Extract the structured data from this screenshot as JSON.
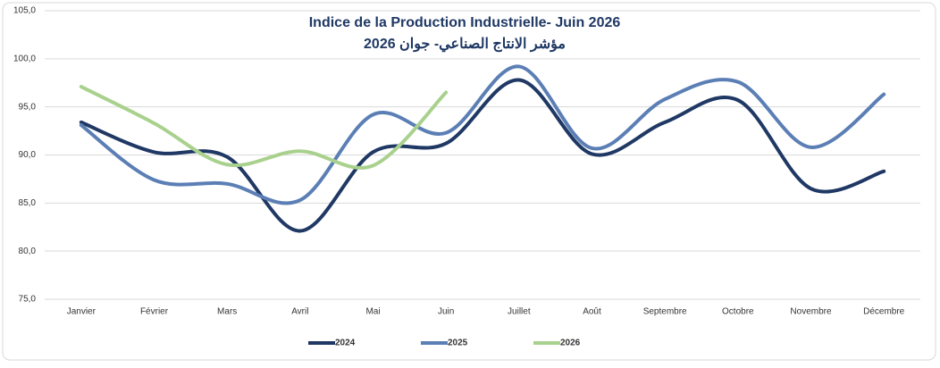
{
  "chart_data": {
    "type": "line",
    "title": "Indice de la Production Industrielle- Juin 2026",
    "subtitle": "مؤشر الانتاج الصناعي- جوان 2026",
    "categories": [
      "Janvier",
      "Février",
      "Mars",
      "Avril",
      "Mai",
      "Juin",
      "Juillet",
      "Août",
      "Septembre",
      "Octobre",
      "Novembre",
      "Décembre"
    ],
    "series": [
      {
        "name": "2024",
        "color": "#1f3864",
        "values": [
          93.4,
          90.3,
          89.8,
          82.1,
          90.3,
          91.2,
          97.8,
          90.1,
          93.4,
          95.7,
          86.5,
          88.3
        ]
      },
      {
        "name": "2025",
        "color": "#5b7fb5",
        "values": [
          93.1,
          87.4,
          87.0,
          85.3,
          94.2,
          92.3,
          99.2,
          90.7,
          95.8,
          97.6,
          90.8,
          96.3
        ]
      },
      {
        "name": "2026",
        "color": "#a9d18e",
        "values": [
          97.1,
          93.3,
          89.0,
          90.4,
          88.9,
          96.5,
          null,
          null,
          null,
          null,
          null,
          null
        ]
      }
    ],
    "ylim": [
      75,
      105
    ],
    "yticks": [
      {
        "value": 75,
        "label": "75,0"
      },
      {
        "value": 80,
        "label": "80,0"
      },
      {
        "value": 85,
        "label": "85,0"
      },
      {
        "value": 90,
        "label": "90,0"
      },
      {
        "value": 95,
        "label": "95,0"
      },
      {
        "value": 100,
        "label": "100,0"
      },
      {
        "value": 105,
        "label": "105,0"
      }
    ],
    "grid": true,
    "legend": "bottom"
  }
}
